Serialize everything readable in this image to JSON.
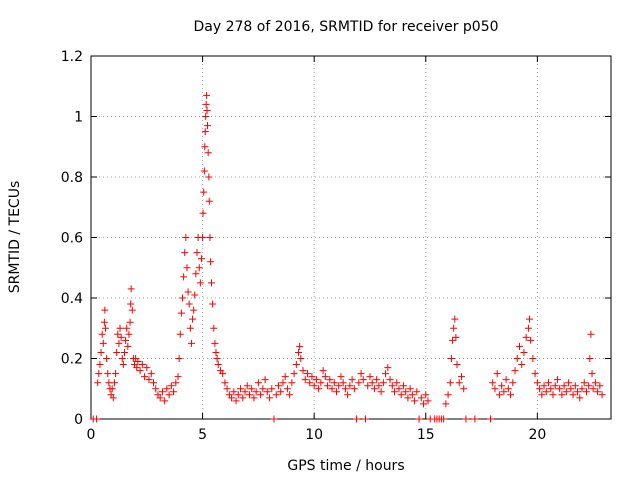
{
  "chart_data": {
    "type": "scatter",
    "title": "Day 278 of 2016, SRMTID for receiver p050",
    "xlabel": "GPS time / hours",
    "ylabel": "SRMTID / TECUs",
    "xlim": [
      0,
      23.3
    ],
    "ylim": [
      0,
      1.2
    ],
    "xticks": [
      0,
      5,
      10,
      15,
      20
    ],
    "xtick_labels": [
      "0",
      "5",
      "10",
      "15",
      "20"
    ],
    "yticks": [
      0,
      0.2,
      0.4,
      0.6,
      0.8,
      1.0,
      1.2
    ],
    "ytick_labels": [
      "0",
      "0.2",
      "0.4",
      "0.6",
      "0.8",
      "1",
      "1.2"
    ],
    "grid": true,
    "marker": "plus",
    "series": [
      {
        "name": "SRMTID",
        "color": "#ff0000",
        "points": [
          [
            0.1,
            0.0
          ],
          [
            0.25,
            0.0
          ],
          [
            0.3,
            0.12
          ],
          [
            0.35,
            0.15
          ],
          [
            0.4,
            0.18
          ],
          [
            0.45,
            0.22
          ],
          [
            0.5,
            0.28
          ],
          [
            0.55,
            0.25
          ],
          [
            0.6,
            0.32
          ],
          [
            0.62,
            0.36
          ],
          [
            0.65,
            0.3
          ],
          [
            0.7,
            0.2
          ],
          [
            0.75,
            0.15
          ],
          [
            0.8,
            0.12
          ],
          [
            0.85,
            0.1
          ],
          [
            0.9,
            0.08
          ],
          [
            0.95,
            0.1
          ],
          [
            1.0,
            0.07
          ],
          [
            1.05,
            0.12
          ],
          [
            1.1,
            0.15
          ],
          [
            1.15,
            0.22
          ],
          [
            1.2,
            0.28
          ],
          [
            1.25,
            0.25
          ],
          [
            1.3,
            0.3
          ],
          [
            1.35,
            0.27
          ],
          [
            1.4,
            0.2
          ],
          [
            1.45,
            0.18
          ],
          [
            1.5,
            0.22
          ],
          [
            1.55,
            0.26
          ],
          [
            1.6,
            0.3
          ],
          [
            1.65,
            0.24
          ],
          [
            1.7,
            0.28
          ],
          [
            1.75,
            0.32
          ],
          [
            1.78,
            0.38
          ],
          [
            1.8,
            0.43
          ],
          [
            1.85,
            0.36
          ],
          [
            1.9,
            0.2
          ],
          [
            1.95,
            0.18
          ],
          [
            2.0,
            0.2
          ],
          [
            2.05,
            0.17
          ],
          [
            2.1,
            0.19
          ],
          [
            2.2,
            0.16
          ],
          [
            2.3,
            0.18
          ],
          [
            2.4,
            0.14
          ],
          [
            2.5,
            0.17
          ],
          [
            2.6,
            0.13
          ],
          [
            2.7,
            0.15
          ],
          [
            2.8,
            0.12
          ],
          [
            2.9,
            0.1
          ],
          [
            3.0,
            0.08
          ],
          [
            3.1,
            0.07
          ],
          [
            3.2,
            0.09
          ],
          [
            3.3,
            0.06
          ],
          [
            3.4,
            0.1
          ],
          [
            3.5,
            0.08
          ],
          [
            3.6,
            0.11
          ],
          [
            3.7,
            0.09
          ],
          [
            3.8,
            0.12
          ],
          [
            3.9,
            0.14
          ],
          [
            3.95,
            0.2
          ],
          [
            4.0,
            0.28
          ],
          [
            4.05,
            0.35
          ],
          [
            4.1,
            0.4
          ],
          [
            4.15,
            0.47
          ],
          [
            4.2,
            0.55
          ],
          [
            4.25,
            0.6
          ],
          [
            4.3,
            0.5
          ],
          [
            4.35,
            0.42
          ],
          [
            4.4,
            0.38
          ],
          [
            4.45,
            0.3
          ],
          [
            4.5,
            0.25
          ],
          [
            4.55,
            0.33
          ],
          [
            4.6,
            0.36
          ],
          [
            4.65,
            0.41
          ],
          [
            4.7,
            0.48
          ],
          [
            4.75,
            0.55
          ],
          [
            4.8,
            0.6
          ],
          [
            4.85,
            0.5
          ],
          [
            4.9,
            0.45
          ],
          [
            4.95,
            0.53
          ],
          [
            5.0,
            0.6
          ],
          [
            5.02,
            0.68
          ],
          [
            5.05,
            0.75
          ],
          [
            5.08,
            0.82
          ],
          [
            5.1,
            0.9
          ],
          [
            5.12,
            0.95
          ],
          [
            5.14,
            1.0
          ],
          [
            5.16,
            1.04
          ],
          [
            5.18,
            1.07
          ],
          [
            5.2,
            1.02
          ],
          [
            5.22,
            0.97
          ],
          [
            5.25,
            0.88
          ],
          [
            5.28,
            0.8
          ],
          [
            5.3,
            0.72
          ],
          [
            5.33,
            0.6
          ],
          [
            5.36,
            0.52
          ],
          [
            5.4,
            0.45
          ],
          [
            5.45,
            0.38
          ],
          [
            5.5,
            0.3
          ],
          [
            5.55,
            0.25
          ],
          [
            5.6,
            0.22
          ],
          [
            5.65,
            0.2
          ],
          [
            5.7,
            0.18
          ],
          [
            5.8,
            0.16
          ],
          [
            5.9,
            0.15
          ],
          [
            6.0,
            0.12
          ],
          [
            6.1,
            0.1
          ],
          [
            6.2,
            0.08
          ],
          [
            6.3,
            0.07
          ],
          [
            6.4,
            0.09
          ],
          [
            6.5,
            0.06
          ],
          [
            6.6,
            0.08
          ],
          [
            6.7,
            0.1
          ],
          [
            6.8,
            0.07
          ],
          [
            6.9,
            0.09
          ],
          [
            7.0,
            0.11
          ],
          [
            7.1,
            0.08
          ],
          [
            7.2,
            0.1
          ],
          [
            7.3,
            0.07
          ],
          [
            7.4,
            0.09
          ],
          [
            7.5,
            0.12
          ],
          [
            7.6,
            0.08
          ],
          [
            7.7,
            0.1
          ],
          [
            7.8,
            0.13
          ],
          [
            7.9,
            0.09
          ],
          [
            8.0,
            0.07
          ],
          [
            8.1,
            0.1
          ],
          [
            8.2,
            0.0
          ],
          [
            8.3,
            0.08
          ],
          [
            8.4,
            0.11
          ],
          [
            8.5,
            0.09
          ],
          [
            8.6,
            0.12
          ],
          [
            8.7,
            0.14
          ],
          [
            8.8,
            0.1
          ],
          [
            8.9,
            0.08
          ],
          [
            9.0,
            0.12
          ],
          [
            9.1,
            0.15
          ],
          [
            9.2,
            0.18
          ],
          [
            9.3,
            0.22
          ],
          [
            9.35,
            0.24
          ],
          [
            9.4,
            0.2
          ],
          [
            9.5,
            0.16
          ],
          [
            9.6,
            0.13
          ],
          [
            9.7,
            0.15
          ],
          [
            9.8,
            0.12
          ],
          [
            9.9,
            0.14
          ],
          [
            10.0,
            0.11
          ],
          [
            10.1,
            0.13
          ],
          [
            10.2,
            0.1
          ],
          [
            10.3,
            0.12
          ],
          [
            10.4,
            0.16
          ],
          [
            10.5,
            0.14
          ],
          [
            10.6,
            0.11
          ],
          [
            10.7,
            0.13
          ],
          [
            10.8,
            0.1
          ],
          [
            10.9,
            0.12
          ],
          [
            11.0,
            0.09
          ],
          [
            11.1,
            0.11
          ],
          [
            11.2,
            0.14
          ],
          [
            11.3,
            0.12
          ],
          [
            11.4,
            0.1
          ],
          [
            11.5,
            0.08
          ],
          [
            11.6,
            0.11
          ],
          [
            11.7,
            0.13
          ],
          [
            11.8,
            0.1
          ],
          [
            11.9,
            0.0
          ],
          [
            12.0,
            0.12
          ],
          [
            12.1,
            0.15
          ],
          [
            12.2,
            0.13
          ],
          [
            12.3,
            0.0
          ],
          [
            12.4,
            0.11
          ],
          [
            12.5,
            0.14
          ],
          [
            12.6,
            0.12
          ],
          [
            12.7,
            0.1
          ],
          [
            12.8,
            0.13
          ],
          [
            12.9,
            0.11
          ],
          [
            13.0,
            0.09
          ],
          [
            13.1,
            0.12
          ],
          [
            13.2,
            0.15
          ],
          [
            13.3,
            0.17
          ],
          [
            13.4,
            0.13
          ],
          [
            13.5,
            0.11
          ],
          [
            13.6,
            0.09
          ],
          [
            13.7,
            0.12
          ],
          [
            13.8,
            0.1
          ],
          [
            13.9,
            0.08
          ],
          [
            14.0,
            0.11
          ],
          [
            14.1,
            0.09
          ],
          [
            14.2,
            0.07
          ],
          [
            14.3,
            0.1
          ],
          [
            14.4,
            0.08
          ],
          [
            14.5,
            0.06
          ],
          [
            14.6,
            0.09
          ],
          [
            14.7,
            0.0
          ],
          [
            14.8,
            0.07
          ],
          [
            14.9,
            0.05
          ],
          [
            15.0,
            0.08
          ],
          [
            15.1,
            0.06
          ],
          [
            15.2,
            0.0
          ],
          [
            15.4,
            0.0
          ],
          [
            15.5,
            0.0
          ],
          [
            15.6,
            0.0
          ],
          [
            15.7,
            0.0
          ],
          [
            15.8,
            0.0
          ],
          [
            15.9,
            0.05
          ],
          [
            16.0,
            0.08
          ],
          [
            16.1,
            0.12
          ],
          [
            16.15,
            0.2
          ],
          [
            16.2,
            0.26
          ],
          [
            16.25,
            0.3
          ],
          [
            16.3,
            0.33
          ],
          [
            16.35,
            0.27
          ],
          [
            16.4,
            0.18
          ],
          [
            16.5,
            0.12
          ],
          [
            16.6,
            0.14
          ],
          [
            16.7,
            0.1
          ],
          [
            16.8,
            0.0
          ],
          [
            17.2,
            0.0
          ],
          [
            17.9,
            0.0
          ],
          [
            18.0,
            0.12
          ],
          [
            18.1,
            0.1
          ],
          [
            18.2,
            0.15
          ],
          [
            18.3,
            0.08
          ],
          [
            18.4,
            0.11
          ],
          [
            18.5,
            0.09
          ],
          [
            18.6,
            0.13
          ],
          [
            18.7,
            0.1
          ],
          [
            18.8,
            0.08
          ],
          [
            18.9,
            0.12
          ],
          [
            19.0,
            0.16
          ],
          [
            19.1,
            0.2
          ],
          [
            19.2,
            0.24
          ],
          [
            19.3,
            0.18
          ],
          [
            19.4,
            0.22
          ],
          [
            19.5,
            0.27
          ],
          [
            19.6,
            0.3
          ],
          [
            19.65,
            0.33
          ],
          [
            19.7,
            0.26
          ],
          [
            19.8,
            0.2
          ],
          [
            19.9,
            0.15
          ],
          [
            20.0,
            0.12
          ],
          [
            20.1,
            0.1
          ],
          [
            20.2,
            0.08
          ],
          [
            20.3,
            0.11
          ],
          [
            20.4,
            0.09
          ],
          [
            20.5,
            0.12
          ],
          [
            20.6,
            0.1
          ],
          [
            20.7,
            0.08
          ],
          [
            20.8,
            0.11
          ],
          [
            20.9,
            0.13
          ],
          [
            21.0,
            0.1
          ],
          [
            21.1,
            0.08
          ],
          [
            21.2,
            0.11
          ],
          [
            21.3,
            0.09
          ],
          [
            21.4,
            0.12
          ],
          [
            21.5,
            0.1
          ],
          [
            21.6,
            0.08
          ],
          [
            21.7,
            0.11
          ],
          [
            21.8,
            0.09
          ],
          [
            21.9,
            0.07
          ],
          [
            22.0,
            0.1
          ],
          [
            22.1,
            0.12
          ],
          [
            22.2,
            0.09
          ],
          [
            22.3,
            0.11
          ],
          [
            22.35,
            0.2
          ],
          [
            22.4,
            0.28
          ],
          [
            22.45,
            0.15
          ],
          [
            22.5,
            0.1
          ],
          [
            22.6,
            0.12
          ],
          [
            22.7,
            0.09
          ],
          [
            22.8,
            0.11
          ],
          [
            22.9,
            0.08
          ]
        ]
      }
    ]
  }
}
